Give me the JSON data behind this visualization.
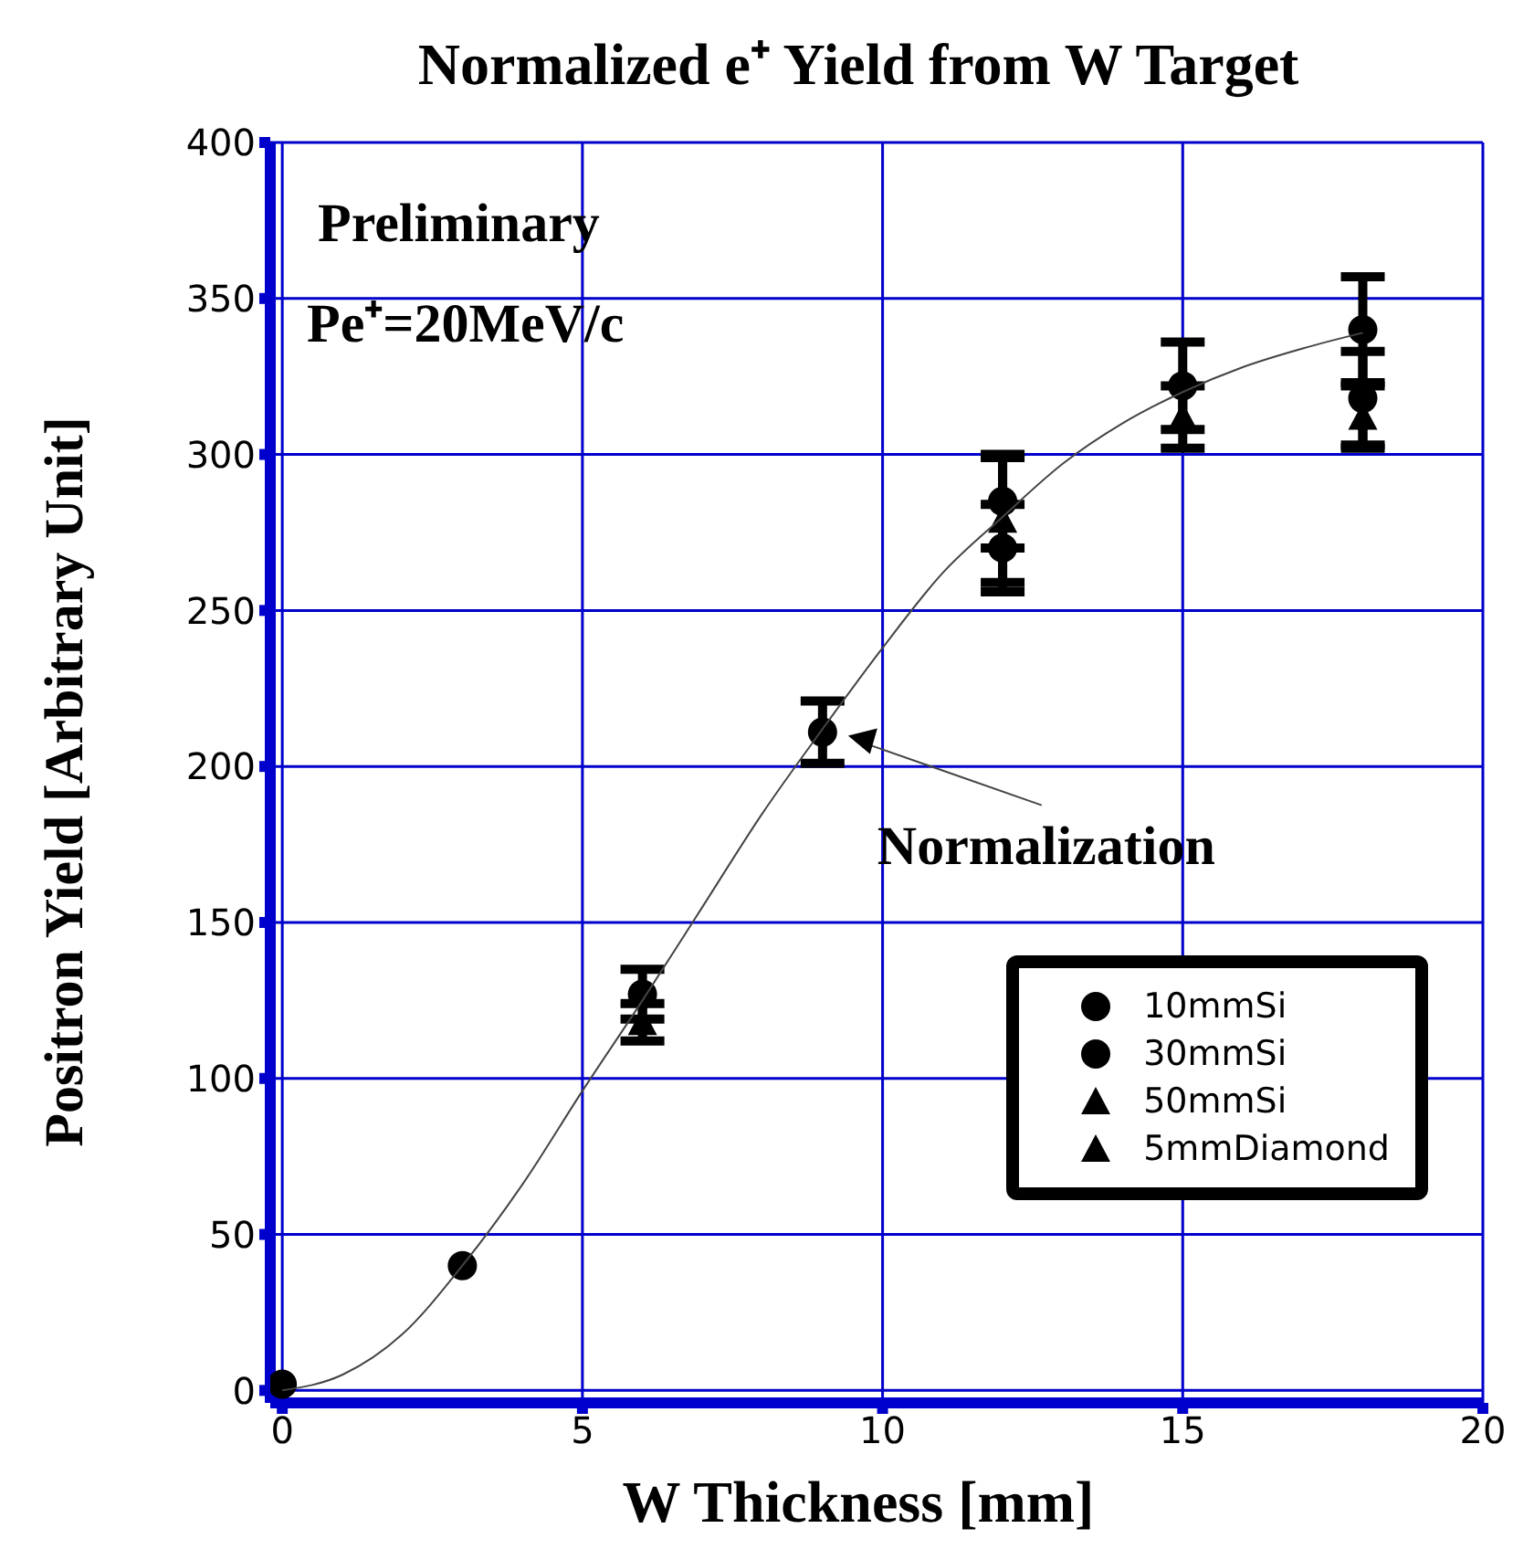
{
  "chart_data": {
    "type": "scatter",
    "title": "Normalized e⁺ Yield from W Target",
    "xlabel": "W Thickness [mm]",
    "ylabel": "Positron Yield [Arbitrary Unit]",
    "xlim": [
      -0.2,
      20
    ],
    "xticks": [
      0,
      5,
      10,
      15,
      20
    ],
    "ylim": [
      -4,
      400
    ],
    "yticks": [
      0,
      50,
      100,
      150,
      200,
      250,
      300,
      350,
      400
    ],
    "grid": true,
    "legend": "bottom right",
    "annotations": [
      "Preliminary",
      "Pe⁺=20MeV/c",
      {
        "text": "Normalization",
        "x": 9,
        "y": 211
      }
    ],
    "series": [
      {
        "name": "10mmSi",
        "color": "#000000",
        "marker": "circle",
        "x": [
          0,
          3,
          6,
          12,
          15,
          18
        ],
        "values": [
          2,
          40,
          127,
          285,
          322,
          318
        ],
        "errors": [
          null,
          null,
          8,
          15,
          14,
          15
        ]
      },
      {
        "name": "30mmSi",
        "color": "#000000",
        "marker": "circle",
        "x": [
          9,
          12,
          18
        ],
        "values": [
          211,
          270,
          340
        ],
        "errors": [
          10,
          14,
          17
        ]
      },
      {
        "name": "50mmSi",
        "color": "#000000",
        "marker": "triangle",
        "x": [
          12
        ],
        "values": [
          279
        ],
        "errors": [
          20
        ]
      },
      {
        "name": "5mmDiamond",
        "color": "#000000",
        "marker": "triangle",
        "x": [
          6,
          15,
          18
        ],
        "values": [
          118,
          312,
          312
        ],
        "errors": [
          6,
          10,
          10
        ]
      },
      {
        "type": "line",
        "color": "#444444",
        "marker": "none",
        "x": [
          0,
          1,
          2,
          3,
          4,
          5,
          6,
          7,
          8,
          9,
          10,
          11,
          12,
          13,
          14,
          15,
          16,
          17,
          18
        ],
        "values": [
          0,
          5,
          18,
          40,
          66,
          96,
          125,
          155,
          185,
          212,
          238,
          262,
          280,
          297,
          310,
          320,
          328,
          334,
          339
        ]
      }
    ]
  }
}
